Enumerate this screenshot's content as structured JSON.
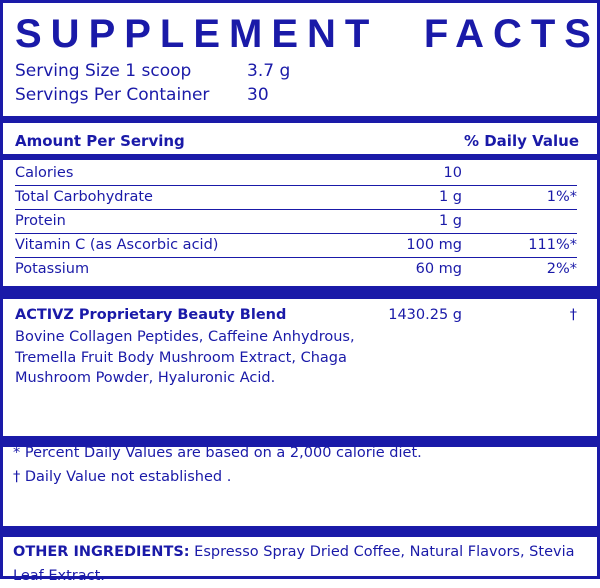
{
  "title": {
    "word1": "SUPPLEMENT",
    "word2": "FACTS"
  },
  "serving": {
    "size_label": "Serving Size 1 scoop",
    "size_value": "3.7 g",
    "per_container_label": "Servings Per Container",
    "per_container_value": "30"
  },
  "header": {
    "amount": "Amount Per Serving",
    "daily_value": "% Daily Value"
  },
  "nutrients": [
    {
      "name": "Calories",
      "amount": "10",
      "dv": ""
    },
    {
      "name": "Total Carbohydrate",
      "amount": "1 g",
      "dv": "1%*"
    },
    {
      "name": "Protein",
      "amount": "1 g",
      "dv": ""
    },
    {
      "name": "Vitamin C (as Ascorbic acid)",
      "amount": "100 mg",
      "dv": "111%*"
    },
    {
      "name": "Potassium",
      "amount": "60 mg",
      "dv": "2%*"
    }
  ],
  "blend": {
    "name": "ACTIVZ Proprietary Beauty Blend",
    "amount": "1430.25 g",
    "dv": "†",
    "ingredients": "Bovine Collagen Peptides, Caffeine Anhydrous, Tremella Fruit Body Mushroom Extract, Chaga Mushroom Powder, Hyaluronic Acid."
  },
  "footnotes": {
    "percent": "* Percent Daily Values are based on a 2,000 calorie diet.",
    "dagger": "† Daily Value not established ."
  },
  "other": {
    "label": "OTHER INGREDIENTS:",
    "text": " Espresso Spray Dried Coffee, Natural Flavors, Stevia Leaf Extract."
  },
  "colors": {
    "primary": "#1a1aa8",
    "background": "#ffffff"
  }
}
